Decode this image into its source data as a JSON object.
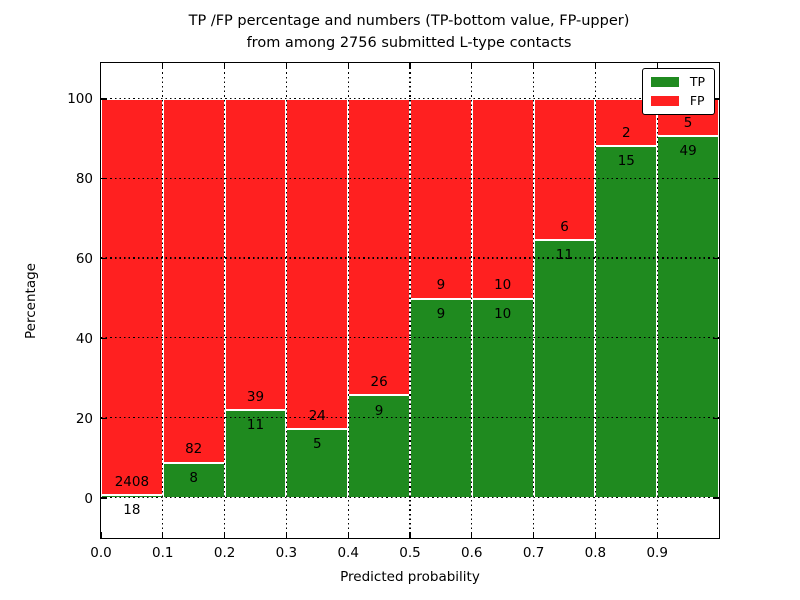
{
  "title": {
    "line1": "TP /FP percentage and numbers (TP-bottom value, FP-upper)",
    "line2": "from among 2756 submitted L-type contacts"
  },
  "chart_data": {
    "type": "bar",
    "stacked": true,
    "normalized_to_percent": true,
    "title": "TP /FP percentage and numbers (TP-bottom value, FP-upper) from among 2756 submitted L-type contacts",
    "xlabel": "Predicted probability",
    "ylabel": "Percentage",
    "total_contacts": 2756,
    "xlim": [
      0.0,
      1.0
    ],
    "ylim": [
      -10,
      109
    ],
    "bin_width": 0.1,
    "x_tick_labels": [
      "0.0",
      "0.1",
      "0.2",
      "0.3",
      "0.4",
      "0.5",
      "0.6",
      "0.7",
      "0.8",
      "0.9"
    ],
    "y_tick_values": [
      0,
      20,
      40,
      60,
      80,
      100
    ],
    "grid": "dotted black, both axes, drawn above bars",
    "categories": [
      "0.0-0.1",
      "0.1-0.2",
      "0.2-0.3",
      "0.3-0.4",
      "0.4-0.5",
      "0.5-0.6",
      "0.6-0.7",
      "0.7-0.8",
      "0.8-0.9",
      "0.9-1.0"
    ],
    "series": [
      {
        "name": "TP",
        "color": "#1f8a1f",
        "counts": [
          18,
          8,
          11,
          5,
          9,
          9,
          10,
          11,
          15,
          49
        ]
      },
      {
        "name": "FP",
        "color": "#ff2020",
        "counts": [
          2408,
          82,
          39,
          24,
          26,
          9,
          10,
          6,
          2,
          5
        ]
      }
    ],
    "tp_percent_of_bin": [
      0.74,
      8.89,
      22.0,
      17.24,
      25.71,
      50.0,
      50.0,
      64.71,
      88.24,
      90.74
    ],
    "legend": {
      "position": "upper right",
      "entries": [
        {
          "label": "TP",
          "color": "#1f8a1f"
        },
        {
          "label": "FP",
          "color": "#ff2020"
        }
      ]
    }
  },
  "colors": {
    "tp_green": "#1f8a1f",
    "fp_red": "#ff2020",
    "background": "#ffffff",
    "axis": "#000000",
    "text": "#000000",
    "bar_edge": "#ffffff"
  }
}
